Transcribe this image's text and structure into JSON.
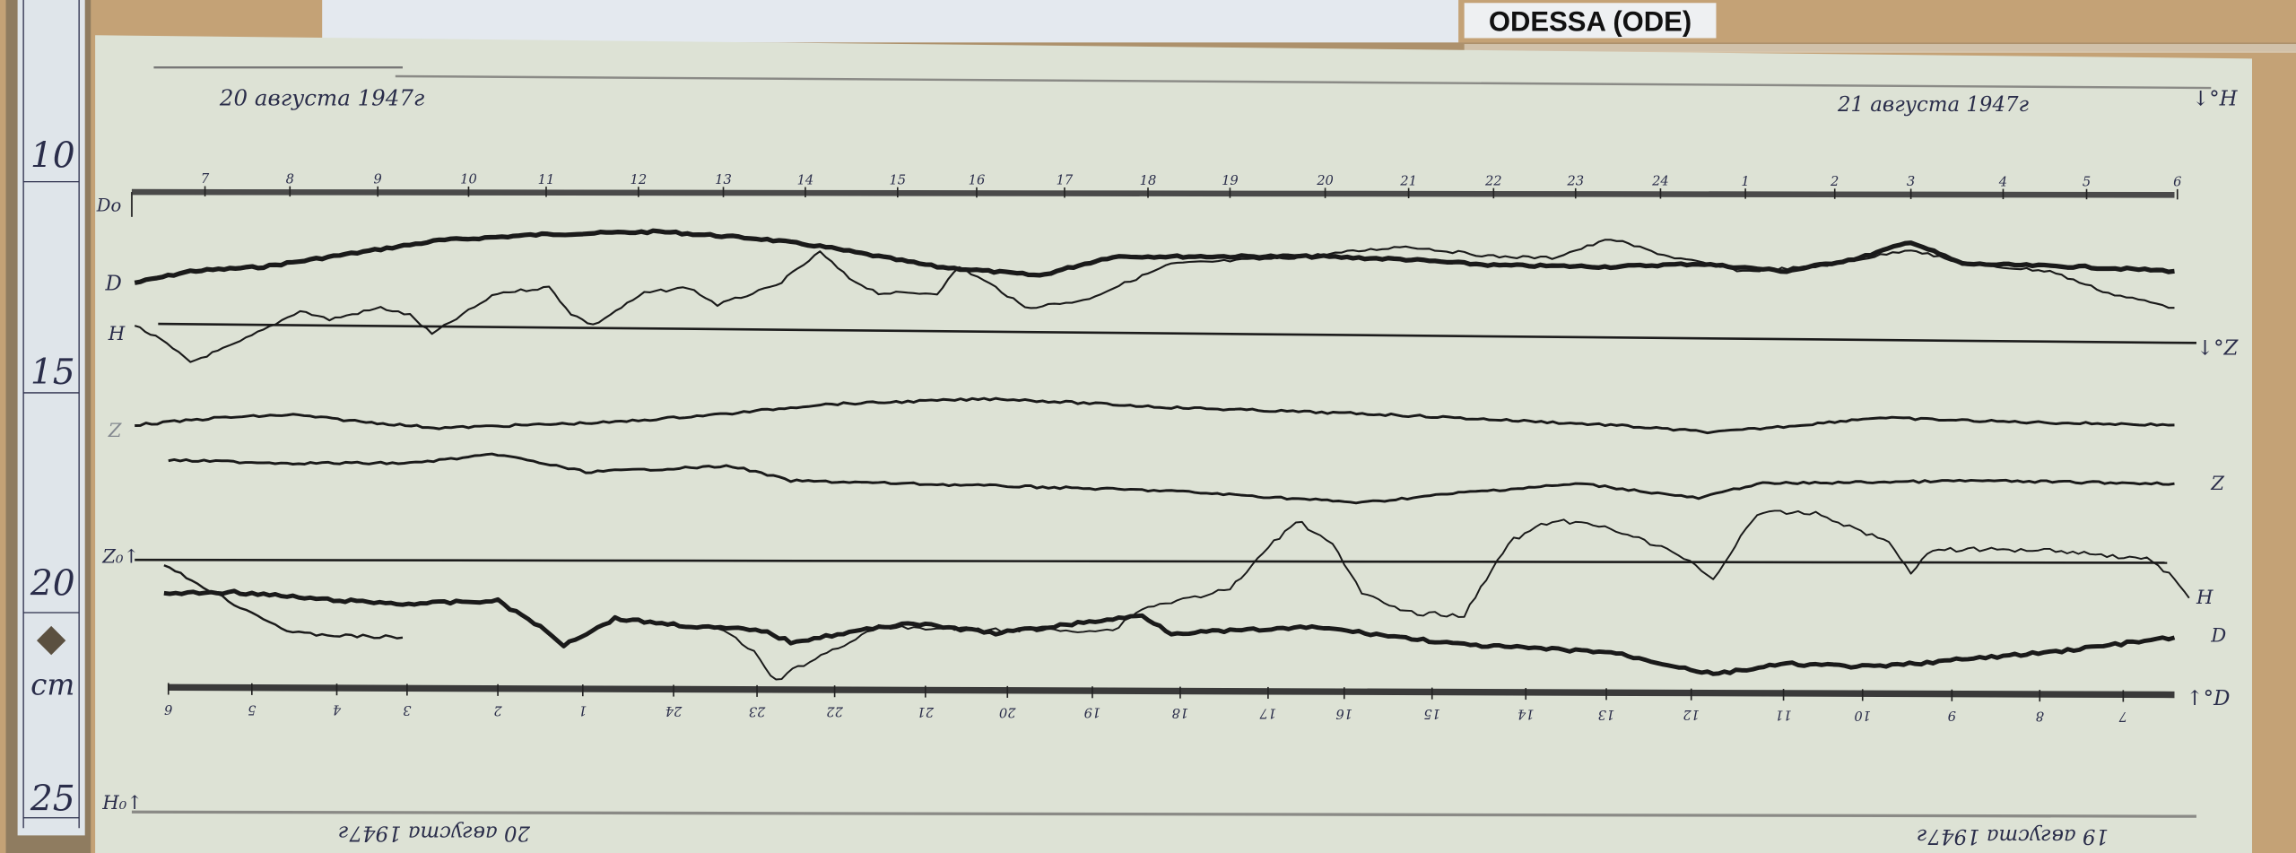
{
  "station_label": "ODESSA (ODE)",
  "ruler": {
    "marks": [
      "10",
      "15",
      "20",
      "25"
    ],
    "unit": "cm"
  },
  "magnetogram": {
    "top_date": "20 августа 1947г",
    "top_right_date": "21 августа 1947г",
    "bottom_left_date": "20 августа 1947г",
    "bottom_right_date": "19 августа 1947г",
    "top_scale_hours": [
      "7",
      "8",
      "9",
      "10",
      "11",
      "12",
      "13",
      "14",
      "15",
      "16",
      "17",
      "18",
      "19",
      "20",
      "21",
      "22",
      "23",
      "24",
      "1",
      "2",
      "3",
      "4",
      "5",
      "6"
    ],
    "bottom_scale_hours": [
      "6",
      "5",
      "4",
      "3",
      "2",
      "1",
      "24",
      "23",
      "22",
      "21",
      "20",
      "19",
      "18",
      "17",
      "16",
      "15",
      "14",
      "13",
      "12",
      "11",
      "10",
      "9",
      "8",
      "7"
    ],
    "left_labels": {
      "d0": "Dо",
      "d": "D",
      "h": "H",
      "z": "Z",
      "z0": "Z₀↑",
      "h0": "H₀↑"
    },
    "right_labels": {
      "h_base": "↓°H",
      "z_base": "↓°Z",
      "z": "Z",
      "h": "H",
      "d": "D",
      "d_base": "↑°D"
    }
  },
  "colors": {
    "wood": "#c4a276",
    "paper": "#dde2d5",
    "ink": "#1c1c1c",
    "handwriting": "#2a2d4a"
  }
}
